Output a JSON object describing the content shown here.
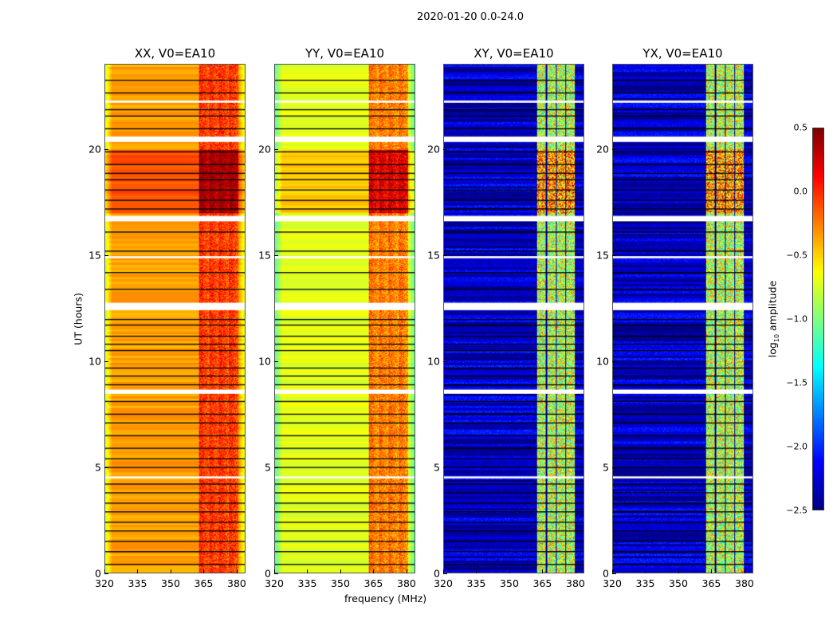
{
  "chart_data": {
    "type": "heatmap",
    "title": "2020-01-20 0.0-24.0",
    "xlabel": "frequency (MHz)",
    "ylabel": "UT (hours)",
    "xlim": [
      320,
      384
    ],
    "ylim": [
      0,
      24
    ],
    "xticks": [
      "320",
      "335",
      "350",
      "365",
      "380"
    ],
    "xtick_values": [
      320,
      335,
      350,
      365,
      380
    ],
    "yticks": [
      "0",
      "5",
      "10",
      "15",
      "20"
    ],
    "ytick_values": [
      0,
      5,
      10,
      15,
      20
    ],
    "colorbar": {
      "label_main": "log",
      "label_sub": "10",
      "label_rest": " amplitude",
      "colormap": "jet",
      "range": [
        -2.5,
        0.5
      ],
      "ticks": [
        "0.5",
        "0.0",
        "−0.5",
        "−1.0",
        "−1.5",
        "−2.0",
        "−2.5"
      ],
      "tick_values": [
        0.5,
        0.0,
        -0.5,
        -1.0,
        -1.5,
        -2.0,
        -2.5
      ]
    },
    "flagged_hours": [
      [
        12.4,
        12.75
      ],
      [
        16.6,
        16.85
      ],
      [
        20.35,
        20.6
      ],
      [
        8.45,
        8.65
      ],
      [
        4.45,
        4.55
      ],
      [
        22.2,
        22.3
      ],
      [
        14.85,
        14.95
      ]
    ],
    "row_breaks_hours": [
      0.4,
      1.0,
      1.5,
      2.0,
      2.4,
      2.9,
      3.3,
      3.8,
      4.2,
      5.0,
      5.4,
      5.9,
      6.5,
      7.1,
      7.5,
      8.1,
      8.9,
      9.3,
      9.7,
      10.5,
      10.8,
      11.2,
      11.7,
      12.0,
      13.4,
      14.2,
      15.2,
      16.1,
      17.2,
      17.6,
      18.1,
      18.6,
      18.9,
      19.3,
      19.9,
      21.0,
      21.6,
      21.9,
      22.7,
      23.3
    ],
    "panels": [
      {
        "name": "XX, V0=EA10",
        "base_level": -0.35,
        "band_level": 0.05,
        "band_mhz": [
          363,
          381
        ]
      },
      {
        "name": "YY, V0=EA10",
        "base_level": -0.7,
        "band_level": -0.15,
        "band_mhz": [
          363,
          381
        ]
      },
      {
        "name": "XY, V0=EA10",
        "base_level": -2.3,
        "band_level": -0.8,
        "band_mhz": [
          362,
          380
        ]
      },
      {
        "name": "YX, V0=EA10",
        "base_level": -2.3,
        "band_level": -0.8,
        "band_mhz": [
          362,
          380
        ]
      }
    ]
  }
}
